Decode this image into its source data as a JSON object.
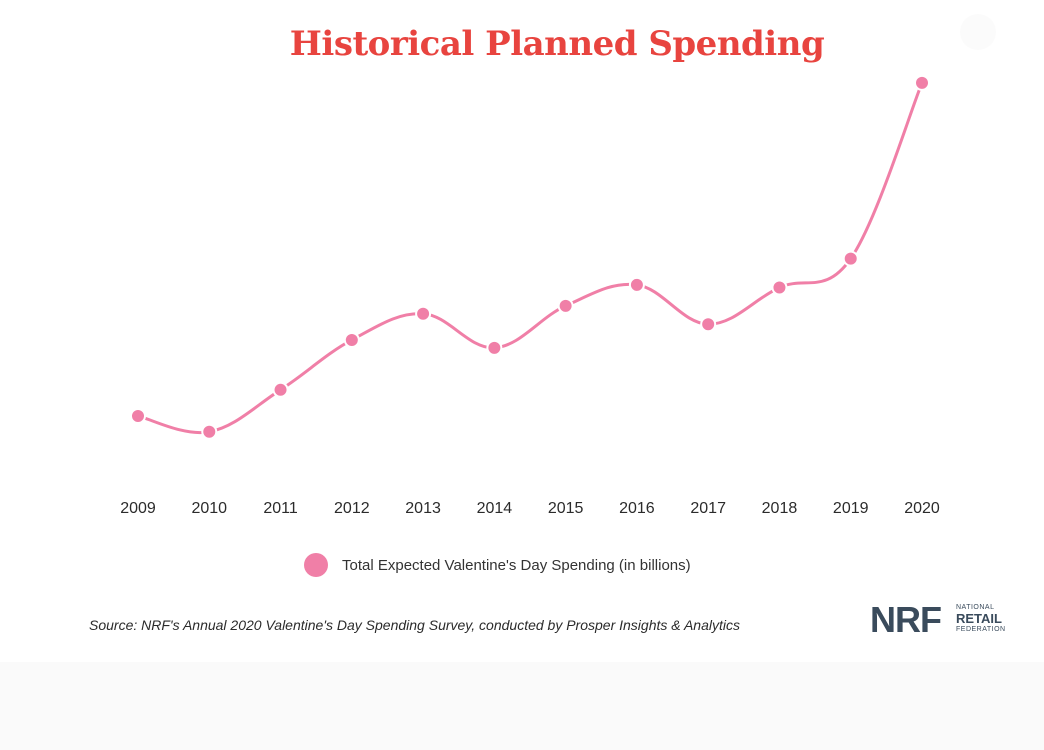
{
  "title": "Historical Planned Spending",
  "legend_label": "Total Expected Valentine's Day Spending (in billions)",
  "source": "Source: NRF's Annual 2020 Valentine's Day Spending Survey, conducted by Prosper Insights & Analytics",
  "logo": {
    "mark": "NRF",
    "line1": "NATIONAL",
    "line2": "RETAIL",
    "line3": "FEDERATION"
  },
  "colors": {
    "title": "#e8443f",
    "series": "#f07fa7",
    "logo": "#3a4b5c"
  },
  "chart_data": {
    "type": "line",
    "x": [
      "2009",
      "2010",
      "2011",
      "2012",
      "2013",
      "2014",
      "2015",
      "2016",
      "2017",
      "2018",
      "2019",
      "2020"
    ],
    "series": [
      {
        "name": "Total Expected Valentine's Day Spending (in billions)",
        "values": [
          14.7,
          14.1,
          15.7,
          17.6,
          18.6,
          17.3,
          18.9,
          19.7,
          18.2,
          19.6,
          20.7,
          27.4
        ]
      }
    ],
    "ylim": [
      11.5,
      28.5
    ],
    "grid": false,
    "y_axis_visible": false,
    "legend": "bottom-center"
  }
}
